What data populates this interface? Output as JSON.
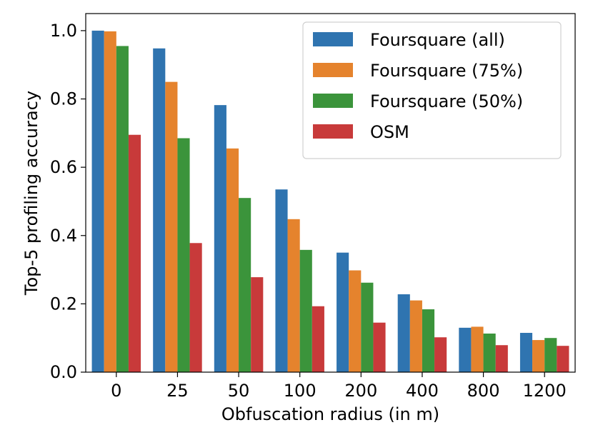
{
  "chart_data": {
    "type": "bar",
    "categories": [
      "0",
      "25",
      "50",
      "100",
      "200",
      "400",
      "800",
      "1200"
    ],
    "series": [
      {
        "name": "Foursquare (all)",
        "color": "#2f74b0",
        "values": [
          1.0,
          0.948,
          0.782,
          0.535,
          0.35,
          0.228,
          0.13,
          0.115
        ]
      },
      {
        "name": "Foursquare (75%)",
        "color": "#e5832d",
        "values": [
          0.998,
          0.85,
          0.655,
          0.448,
          0.298,
          0.21,
          0.133,
          0.094
        ]
      },
      {
        "name": "Foursquare (50%)",
        "color": "#3b943b",
        "values": [
          0.955,
          0.685,
          0.51,
          0.358,
          0.262,
          0.184,
          0.113,
          0.1
        ]
      },
      {
        "name": "OSM",
        "color": "#c83a3a",
        "values": [
          0.695,
          0.378,
          0.278,
          0.193,
          0.145,
          0.102,
          0.079,
          0.077
        ]
      }
    ],
    "xlabel": "Obfuscation radius (in m)",
    "ylabel": "Top-5 profiling accuracy",
    "ylim": [
      0.0,
      1.05
    ],
    "yticks": [
      "0.0",
      "0.2",
      "0.4",
      "0.6",
      "0.8",
      "1.0"
    ],
    "legend_position": "top-right",
    "grid": false
  }
}
